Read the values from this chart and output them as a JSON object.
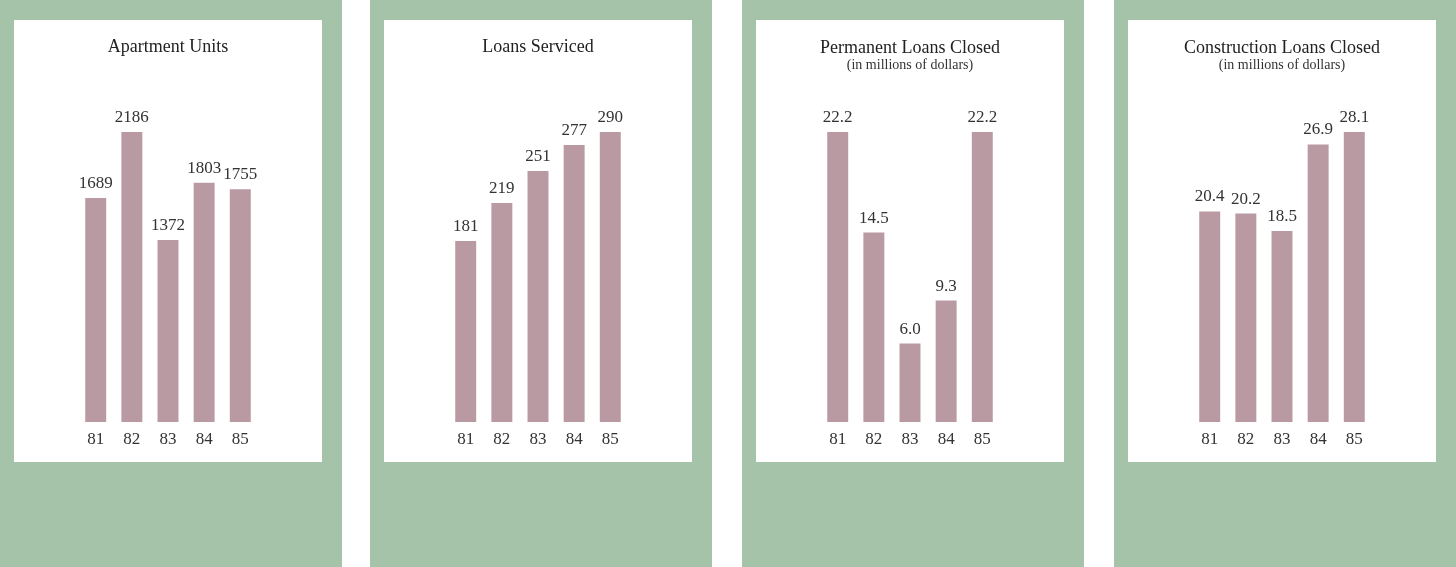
{
  "chart_data": [
    {
      "type": "bar",
      "title": "Apartment Units",
      "categories": [
        "81",
        "82",
        "83",
        "84",
        "85"
      ],
      "values": [
        1689,
        2186,
        1372,
        1803,
        1755
      ],
      "color": "#b99aa3",
      "data_labels": true
    },
    {
      "type": "bar",
      "title": "Loans Serviced",
      "categories": [
        "81",
        "82",
        "83",
        "84",
        "85"
      ],
      "values": [
        181,
        219,
        251,
        277,
        290
      ],
      "color": "#b99aa3",
      "data_labels": true
    },
    {
      "type": "bar",
      "title": "Permanent Loans Closed",
      "subtitle": "(in millions of dollars)",
      "categories": [
        "81",
        "82",
        "83",
        "84",
        "85"
      ],
      "values": [
        22.2,
        14.5,
        6.0,
        9.3,
        22.2
      ],
      "color": "#b99aa3",
      "value_labels": [
        "22.2",
        "14.5",
        "6.0",
        "9.3",
        "22.2"
      ]
    },
    {
      "type": "bar",
      "title": "Construction Loans Closed",
      "subtitle": "(in millions of dollars)",
      "categories": [
        "81",
        "82",
        "83",
        "84",
        "85"
      ],
      "values": [
        20.4,
        20.2,
        18.5,
        26.9,
        28.1
      ],
      "color": "#b99aa3",
      "data_labels": true
    }
  ]
}
